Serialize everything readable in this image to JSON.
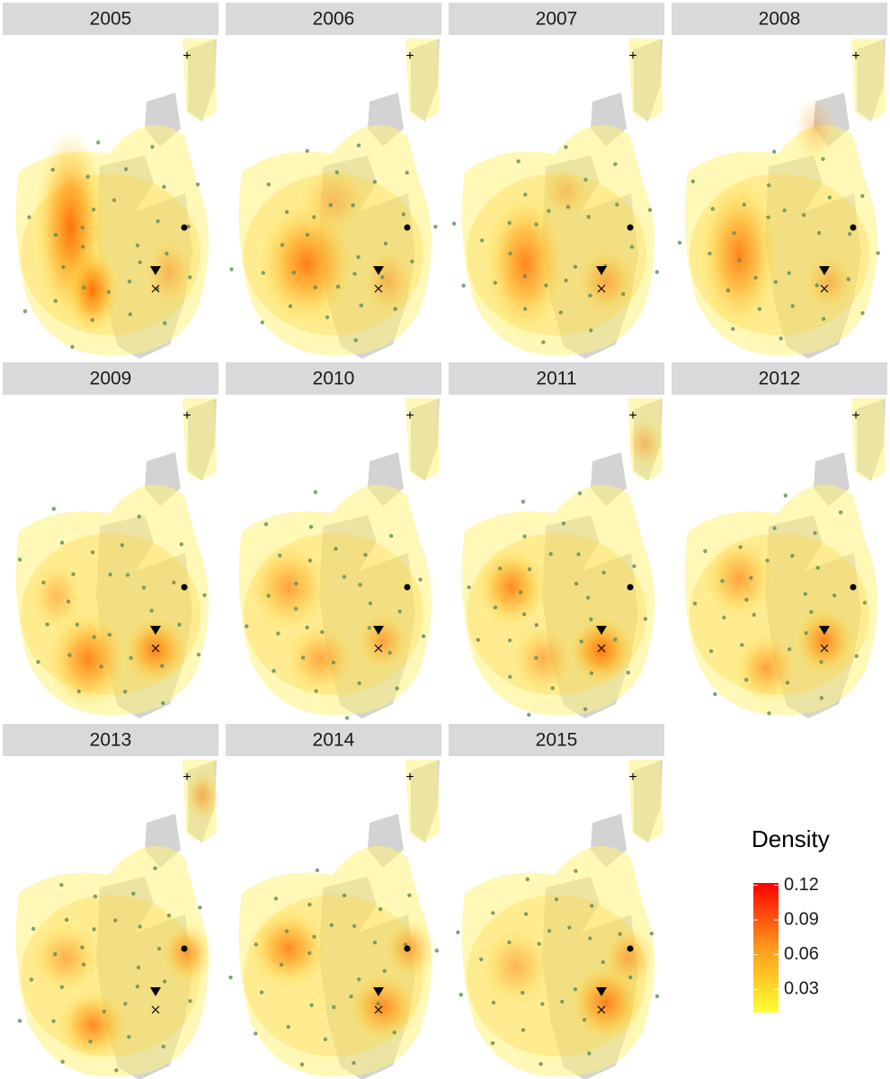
{
  "chart_data": {
    "type": "facet-density-map",
    "facets": [
      "2005",
      "2006",
      "2007",
      "2008",
      "2009",
      "2010",
      "2011",
      "2012",
      "2013",
      "2014",
      "2015"
    ],
    "legend": {
      "title": "Density",
      "limits": [
        0.01,
        0.122
      ],
      "ticks": [
        0.03,
        0.06,
        0.09,
        0.12
      ],
      "colors": [
        "#ffff33",
        "#ff0000"
      ]
    }
  }
}
